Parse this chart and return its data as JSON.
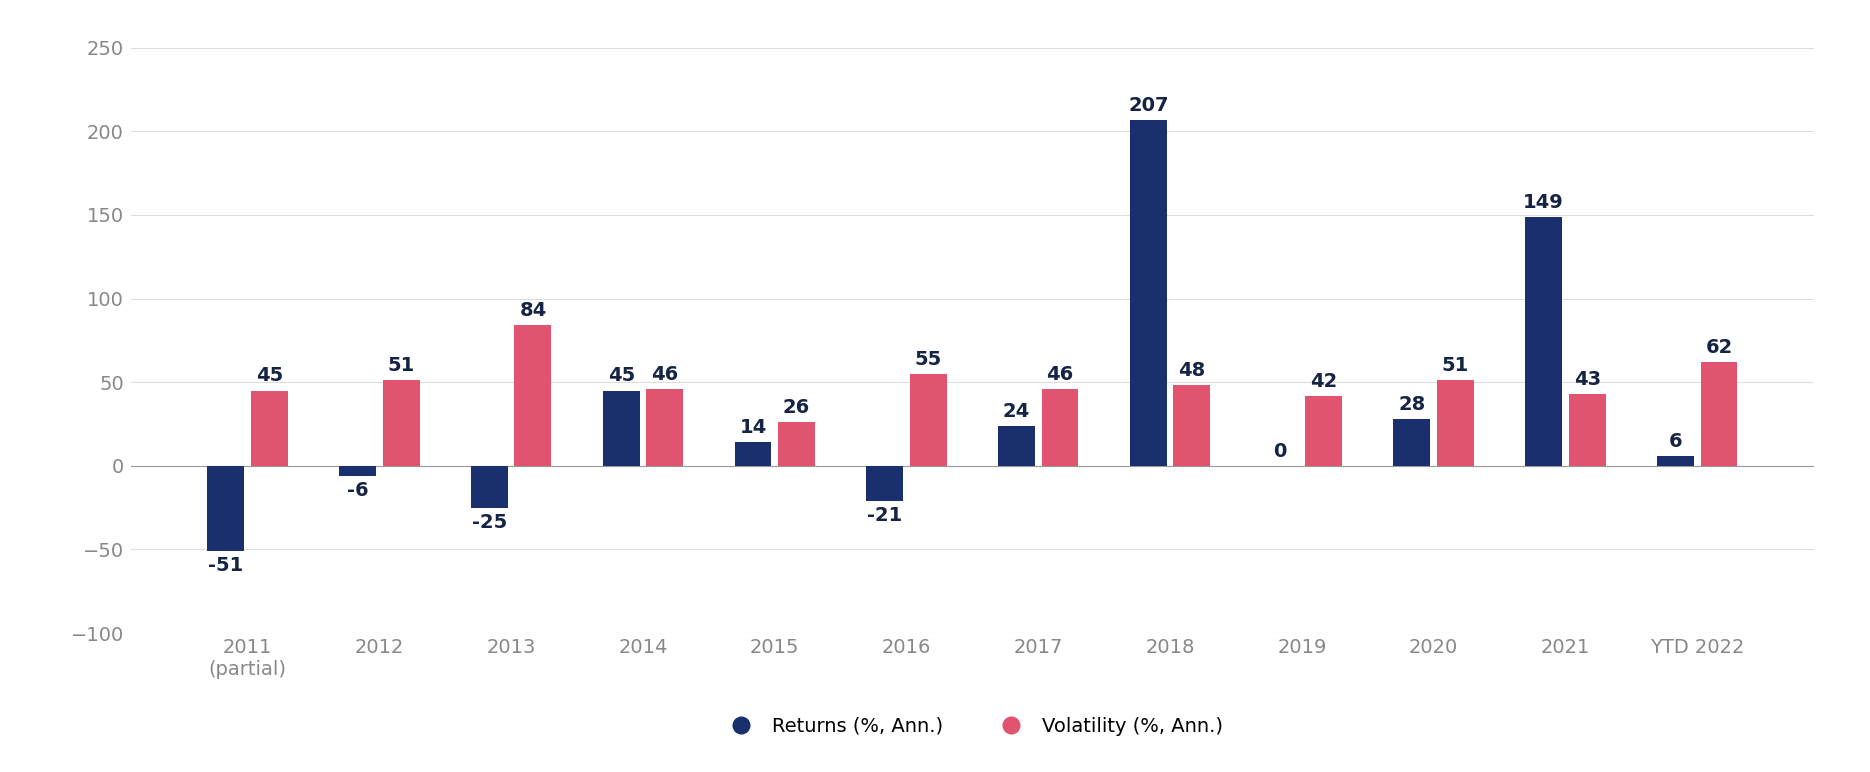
{
  "categories": [
    "2011\n(partial)",
    "2012",
    "2013",
    "2014",
    "2015",
    "2016",
    "2017",
    "2018",
    "2019",
    "2020",
    "2021",
    "YTD 2022"
  ],
  "returns": [
    -51,
    -6,
    -25,
    45,
    14,
    -21,
    24,
    207,
    0,
    28,
    149,
    6
  ],
  "volatility": [
    45,
    51,
    84,
    46,
    26,
    55,
    46,
    48,
    42,
    51,
    43,
    62
  ],
  "returns_color": "#1a2f6e",
  "volatility_color": "#e05470",
  "background_color": "#ffffff",
  "grid_color": "#dddddd",
  "ylim": [
    -100,
    260
  ],
  "yticks": [
    -100,
    -50,
    0,
    50,
    100,
    150,
    200,
    250
  ],
  "bar_width": 0.28,
  "bar_gap": 0.05,
  "figsize": [
    18.7,
    7.72
  ],
  "dpi": 100,
  "legend_labels": [
    "Returns (%, Ann.)",
    "Volatility (%, Ann.)"
  ],
  "tick_fontsize": 14,
  "value_fontsize": 14,
  "legend_fontsize": 14,
  "legend_marker_size": 14,
  "label_color": "#152444",
  "tick_color": "#888888"
}
